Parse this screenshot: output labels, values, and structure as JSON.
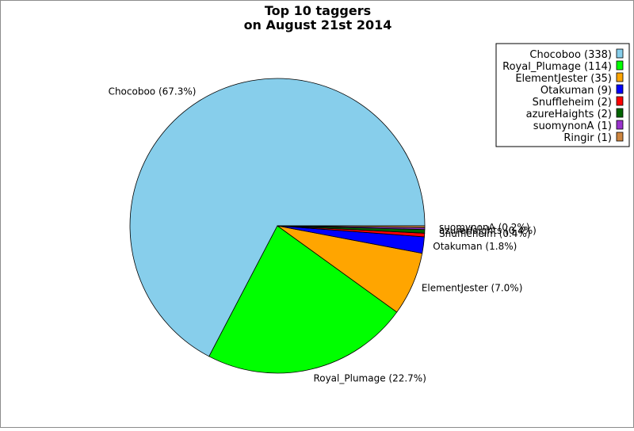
{
  "chart_data": {
    "type": "pie",
    "title_lines": [
      "Top 10 taggers",
      "on August 21st 2014"
    ],
    "slices": [
      {
        "name": "Chocoboo",
        "value": 338,
        "percent": 67.3,
        "color": "#87ceeb",
        "legend": "Chocoboo (338)",
        "label": "Chocoboo (67.3%)"
      },
      {
        "name": "Royal_Plumage",
        "value": 114,
        "percent": 22.7,
        "color": "#00ff00",
        "legend": "Royal_Plumage (114)",
        "label": "Royal_Plumage (22.7%)"
      },
      {
        "name": "ElementJester",
        "value": 35,
        "percent": 7.0,
        "color": "#ffa500",
        "legend": "ElementJester (35)",
        "label": "ElementJester (7.0%)"
      },
      {
        "name": "Otakuman",
        "value": 9,
        "percent": 1.8,
        "color": "#0000ff",
        "legend": "Otakuman (9)",
        "label": "Otakuman (1.8%)"
      },
      {
        "name": "Snuffleheim",
        "value": 2,
        "percent": 0.4,
        "color": "#ff0000",
        "legend": "Snuffleheim (2)",
        "label": "Snuffleheim (0.4%)"
      },
      {
        "name": "azureHaights",
        "value": 2,
        "percent": 0.4,
        "color": "#006400",
        "legend": "azureHaights (2)",
        "label": "azureHaights (0.4%)"
      },
      {
        "name": "suomynonA",
        "value": 1,
        "percent": 0.2,
        "color": "#9932cc",
        "legend": "suomynonA (1)",
        "label": "suomynonA (0.2%)"
      },
      {
        "name": "Ringir",
        "value": 1,
        "percent": 0.2,
        "color": "#cd853f",
        "legend": "Ringir (1)",
        "label": ""
      }
    ],
    "legend_position": "top-right"
  }
}
